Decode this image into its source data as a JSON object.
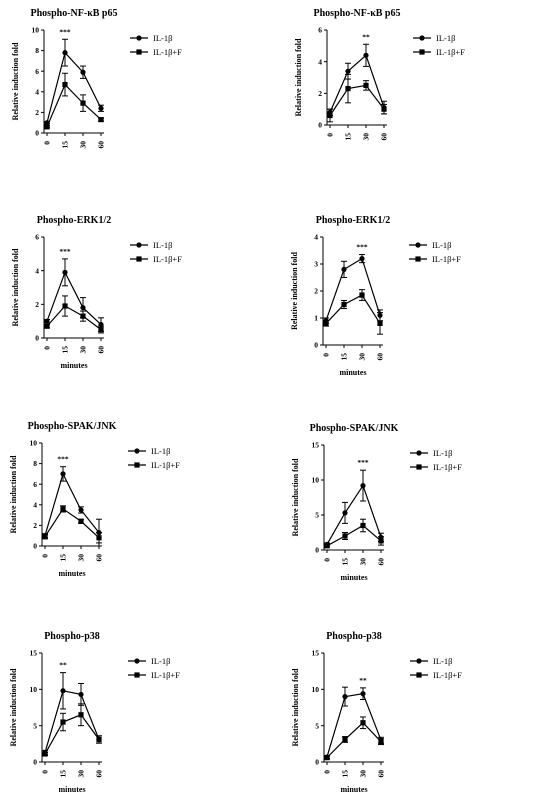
{
  "chart_data": [
    {
      "type": "line",
      "title": "Phospho-NF-κB p65",
      "xlabel": "",
      "ylabel": "Relative induction fold",
      "x": [
        "0",
        "15",
        "30",
        "60"
      ],
      "ylim": [
        0,
        10
      ],
      "yticks": [
        "0",
        "2",
        "4",
        "6",
        "8",
        "10"
      ],
      "series": [
        {
          "name": "IL-1β",
          "marker": "circle",
          "values": [
            1.0,
            7.8,
            5.9,
            2.4
          ],
          "errors": [
            0.1,
            1.3,
            0.6,
            0.3
          ]
        },
        {
          "name": "IL-1β+F",
          "marker": "square",
          "values": [
            0.6,
            4.7,
            2.9,
            1.3
          ],
          "errors": [
            0.1,
            1.1,
            0.8,
            0.15
          ]
        }
      ],
      "significance": [
        {
          "x": "15",
          "label": "***"
        }
      ],
      "legend": "top-right"
    },
    {
      "type": "line",
      "title": "Phospho-NF-κB p65",
      "xlabel": "",
      "ylabel": "Relative induction fold",
      "x": [
        "0",
        "15",
        "30",
        "60"
      ],
      "ylim": [
        0,
        6
      ],
      "yticks": [
        "0",
        "2",
        "4",
        "6"
      ],
      "series": [
        {
          "name": "IL-1β",
          "marker": "circle",
          "values": [
            0.8,
            3.4,
            4.4,
            1.1
          ],
          "errors": [
            0.2,
            0.5,
            0.7,
            0.4
          ]
        },
        {
          "name": "IL-1β+F",
          "marker": "square",
          "values": [
            0.6,
            2.3,
            2.5,
            1.0
          ],
          "errors": [
            0.4,
            0.9,
            0.3,
            0.3
          ]
        }
      ],
      "significance": [
        {
          "x": "30",
          "label": "**"
        }
      ],
      "legend": "top-right"
    },
    {
      "type": "line",
      "title": "Phospho-ERK1/2",
      "xlabel": "minutes",
      "ylabel": "Relative induction fold",
      "x": [
        "0",
        "15",
        "30",
        "60"
      ],
      "ylim": [
        0,
        6
      ],
      "yticks": [
        "0",
        "2",
        "4",
        "6"
      ],
      "series": [
        {
          "name": "IL-1β",
          "marker": "circle",
          "values": [
            1.0,
            3.9,
            1.8,
            0.8
          ],
          "errors": [
            0.1,
            0.8,
            0.6,
            0.4
          ]
        },
        {
          "name": "IL-1β+F",
          "marker": "square",
          "values": [
            0.7,
            1.9,
            1.3,
            0.5
          ],
          "errors": [
            0.1,
            0.6,
            0.3,
            0.2
          ]
        }
      ],
      "significance": [
        {
          "x": "15",
          "label": "***"
        }
      ],
      "legend": "top-right"
    },
    {
      "type": "line",
      "title": "Phospho-ERK1/2",
      "xlabel": "minutes",
      "ylabel": "Relative induction fold",
      "x": [
        "0",
        "15",
        "30",
        "60"
      ],
      "ylim": [
        0,
        4
      ],
      "yticks": [
        "0",
        "1",
        "2",
        "3",
        "4"
      ],
      "series": [
        {
          "name": "IL-1β",
          "marker": "circle",
          "values": [
            0.9,
            2.8,
            3.2,
            1.1
          ],
          "errors": [
            0.1,
            0.3,
            0.15,
            0.2
          ]
        },
        {
          "name": "IL-1β+F",
          "marker": "square",
          "values": [
            0.8,
            1.5,
            1.85,
            0.8
          ],
          "errors": [
            0.1,
            0.15,
            0.2,
            0.4
          ]
        }
      ],
      "significance": [
        {
          "x": "30",
          "label": "***"
        }
      ],
      "legend": "top-right"
    },
    {
      "type": "line",
      "title": "Phospho-SPAK/JNK",
      "xlabel": "minutes",
      "ylabel": "Relative induction fold",
      "x": [
        "0",
        "15",
        "30",
        "60"
      ],
      "ylim": [
        0,
        10
      ],
      "yticks": [
        "0",
        "2",
        "4",
        "6",
        "8",
        "10"
      ],
      "series": [
        {
          "name": "IL-1β",
          "marker": "circle",
          "values": [
            1.0,
            7.0,
            3.5,
            1.3
          ],
          "errors": [
            0.2,
            0.7,
            0.3,
            1.3
          ]
        },
        {
          "name": "IL-1β+F",
          "marker": "square",
          "values": [
            0.9,
            3.6,
            2.4,
            0.8
          ],
          "errors": [
            0.2,
            0.3,
            0.2,
            0.5
          ]
        }
      ],
      "significance": [
        {
          "x": "15",
          "label": "***"
        }
      ],
      "legend": "top-right"
    },
    {
      "type": "line",
      "title": "Phospho-SPAK/JNK",
      "xlabel": "minutes",
      "ylabel": "Relative induction fold",
      "x": [
        "0",
        "15",
        "30",
        "60"
      ],
      "ylim": [
        0,
        15
      ],
      "yticks": [
        "0",
        "5",
        "10",
        "15"
      ],
      "series": [
        {
          "name": "IL-1β",
          "marker": "circle",
          "values": [
            0.8,
            5.3,
            9.2,
            1.8
          ],
          "errors": [
            0.2,
            1.5,
            2.2,
            0.6
          ]
        },
        {
          "name": "IL-1β+F",
          "marker": "square",
          "values": [
            0.6,
            2.0,
            3.5,
            1.3
          ],
          "errors": [
            0.2,
            0.5,
            0.9,
            0.6
          ]
        }
      ],
      "significance": [
        {
          "x": "30",
          "label": "***"
        }
      ],
      "legend": "top-right"
    },
    {
      "type": "line",
      "title": "Phospho-p38",
      "xlabel": "minutes",
      "ylabel": "Relative induction fold",
      "x": [
        "0",
        "15",
        "30",
        "60"
      ],
      "ylim": [
        0,
        15
      ],
      "yticks": [
        "0",
        "5",
        "10",
        "15"
      ],
      "series": [
        {
          "name": "IL-1β",
          "marker": "circle",
          "values": [
            1.3,
            9.8,
            9.3,
            3.1
          ],
          "errors": [
            0.3,
            2.5,
            1.5,
            0.5
          ]
        },
        {
          "name": "IL-1β+F",
          "marker": "square",
          "values": [
            1.1,
            5.5,
            6.5,
            3.1
          ],
          "errors": [
            0.2,
            1.2,
            1.5,
            0.5
          ]
        }
      ],
      "significance": [
        {
          "x": "15",
          "label": "**"
        }
      ],
      "legend": "top-right"
    },
    {
      "type": "line",
      "title": "Phospho-p38",
      "xlabel": "minutes",
      "ylabel": "Relative induction fold",
      "x": [
        "0",
        "15",
        "30",
        "60"
      ],
      "ylim": [
        0,
        15
      ],
      "yticks": [
        "0",
        "5",
        "10",
        "15"
      ],
      "series": [
        {
          "name": "IL-1β",
          "marker": "circle",
          "values": [
            0.7,
            9.0,
            9.4,
            3.0
          ],
          "errors": [
            0.2,
            1.3,
            0.8,
            0.4
          ]
        },
        {
          "name": "IL-1β+F",
          "marker": "square",
          "values": [
            0.6,
            3.1,
            5.4,
            2.8
          ],
          "errors": [
            0.2,
            0.4,
            0.8,
            0.4
          ]
        }
      ],
      "significance": [
        {
          "x": "30",
          "label": "**"
        }
      ],
      "legend": "top-right"
    }
  ]
}
